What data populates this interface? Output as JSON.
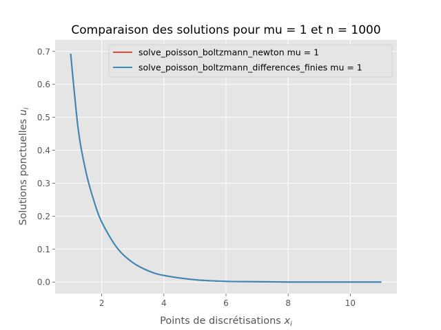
{
  "chart_data": {
    "type": "line",
    "title": "Comparaison des solutions pour mu = 1 et n = 1000",
    "xlabel": "Points de discrétisations",
    "xlabel_math": "x",
    "xlabel_sub": "i",
    "ylabel": "Solutions ponctuelles",
    "ylabel_math": "u",
    "ylabel_sub": "i",
    "xlim": [
      0.5,
      11.5
    ],
    "ylim": [
      -0.035,
      0.735
    ],
    "xticks": [
      2,
      4,
      6,
      8,
      10
    ],
    "yticks": [
      0.0,
      0.1,
      0.2,
      0.3,
      0.4,
      0.5,
      0.6,
      0.7
    ],
    "grid": true,
    "legend_position": "top-right",
    "x": [
      1.0,
      1.25,
      1.5,
      1.75,
      2.0,
      2.5,
      3.0,
      3.5,
      4.0,
      5.0,
      6.0,
      7.0,
      8.0,
      9.0,
      10.0,
      11.0
    ],
    "series": [
      {
        "name": "solve_poisson_boltzmann_newton mu = 1",
        "color": "#e24a33",
        "values": [
          0.693,
          0.459,
          0.331,
          0.246,
          0.182,
          0.103,
          0.059,
          0.034,
          0.02,
          0.007,
          0.002,
          0.001,
          0.0,
          0.0,
          0.0,
          0.0
        ]
      },
      {
        "name": "solve_poisson_boltzmann_differences_finies mu = 1",
        "color": "#348abd",
        "values": [
          0.693,
          0.459,
          0.331,
          0.246,
          0.182,
          0.103,
          0.059,
          0.034,
          0.02,
          0.007,
          0.002,
          0.001,
          0.0,
          0.0,
          0.0,
          0.0
        ]
      }
    ]
  }
}
